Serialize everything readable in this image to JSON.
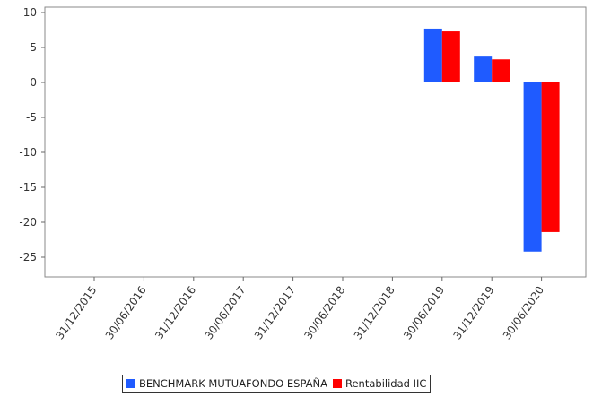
{
  "chart_data": {
    "type": "bar",
    "categories": [
      "31/12/2015",
      "30/06/2016",
      "31/12/2016",
      "30/06/2017",
      "31/12/2017",
      "30/06/2018",
      "31/12/2018",
      "30/06/2019",
      "31/12/2019",
      "30/06/2020"
    ],
    "series": [
      {
        "name": "BENCHMARK MUTUAFONDO ESPAÑA",
        "color": "#1f5bff",
        "values": [
          null,
          null,
          null,
          null,
          null,
          null,
          null,
          7.7,
          3.7,
          -24.2
        ]
      },
      {
        "name": "Rentabilidad IIC",
        "color": "#ff0000",
        "values": [
          null,
          null,
          null,
          null,
          null,
          null,
          null,
          7.3,
          3.3,
          -21.4
        ]
      }
    ],
    "yticks": [
      10,
      5,
      0,
      -5,
      -10,
      -15,
      -20,
      -25
    ],
    "ylim": [
      -27.5,
      10.5
    ],
    "grid": false,
    "legend_position": "bottom"
  }
}
